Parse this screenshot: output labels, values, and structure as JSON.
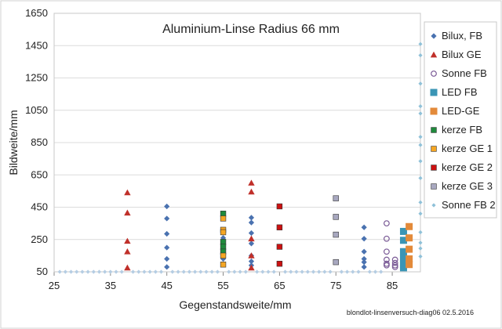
{
  "chart_data": {
    "type": "scatter",
    "title": "Aluminium-Linse Radius 66 mm",
    "xlabel": "Gegenstandsweite/mm",
    "ylabel": "Bildweite/mm",
    "xlim": [
      25,
      90
    ],
    "ylim": [
      50,
      1650
    ],
    "xticks": [
      25,
      35,
      45,
      55,
      65,
      75,
      85
    ],
    "yticks": [
      50,
      250,
      450,
      650,
      850,
      1050,
      1250,
      1450,
      1650
    ],
    "grid": "horizontal",
    "legend_position": "right",
    "footnote": "blondlot-linsenversuch-diag06 02.5.2016",
    "series": [
      {
        "name": "Bilux, FB",
        "marker": "diamond",
        "color": "#4a72b0",
        "points": [
          [
            45,
            455
          ],
          [
            45,
            380
          ],
          [
            45,
            285
          ],
          [
            45,
            200
          ],
          [
            45,
            130
          ],
          [
            45,
            80
          ],
          [
            55,
            260
          ],
          [
            55,
            215
          ],
          [
            55,
            190
          ],
          [
            55,
            130
          ],
          [
            60,
            385
          ],
          [
            60,
            355
          ],
          [
            60,
            290
          ],
          [
            60,
            225
          ],
          [
            60,
            150
          ],
          [
            60,
            115
          ],
          [
            60,
            90
          ],
          [
            80,
            325
          ],
          [
            80,
            255
          ],
          [
            80,
            175
          ],
          [
            80,
            130
          ],
          [
            80,
            110
          ],
          [
            80,
            80
          ]
        ]
      },
      {
        "name": "Bilux GE",
        "marker": "triangle",
        "color": "#c0302a",
        "points": [
          [
            38,
            540
          ],
          [
            38,
            415
          ],
          [
            38,
            240
          ],
          [
            38,
            175
          ],
          [
            38,
            75
          ],
          [
            60,
            600
          ],
          [
            60,
            545
          ],
          [
            60,
            255
          ],
          [
            60,
            150
          ],
          [
            60,
            75
          ]
        ]
      },
      {
        "name": "Sonne FB",
        "marker": "circle-open",
        "color": "#7a5a96",
        "points": [
          [
            84,
            350
          ],
          [
            84,
            255
          ],
          [
            84,
            175
          ],
          [
            84,
            125
          ],
          [
            84,
            100
          ],
          [
            84,
            90
          ],
          [
            85.5,
            125
          ],
          [
            85.5,
            105
          ],
          [
            85.5,
            90
          ],
          [
            85.5,
            80
          ]
        ]
      },
      {
        "name": "LED FB",
        "marker": "square-large",
        "color": "#3a95b5",
        "points": [
          [
            87,
            300
          ],
          [
            87,
            245
          ],
          [
            87,
            175
          ],
          [
            87,
            135
          ],
          [
            87,
            95
          ],
          [
            87,
            75
          ]
        ]
      },
      {
        "name": "LED-GE",
        "marker": "square-large",
        "color": "#e38a3a",
        "points": [
          [
            88,
            330
          ],
          [
            88,
            260
          ],
          [
            88,
            190
          ],
          [
            88,
            130
          ],
          [
            88,
            95
          ]
        ]
      },
      {
        "name": "kerze FB",
        "marker": "square",
        "color": "#1f8a3c",
        "points": [
          [
            55,
            410
          ],
          [
            55,
            235
          ],
          [
            55,
            205
          ],
          [
            55,
            175
          ]
        ]
      },
      {
        "name": "kerze GE 1",
        "marker": "square",
        "color": "#f5a623",
        "points": [
          [
            55,
            380
          ],
          [
            55,
            310
          ],
          [
            55,
            295
          ],
          [
            55,
            150
          ],
          [
            55,
            95
          ]
        ]
      },
      {
        "name": "kerze GE 2",
        "marker": "square",
        "color": "#cc1111",
        "points": [
          [
            65,
            455
          ],
          [
            65,
            325
          ],
          [
            65,
            205
          ],
          [
            65,
            100
          ]
        ]
      },
      {
        "name": "kerze GE 3",
        "marker": "square",
        "color": "#a8a8c0",
        "points": [
          [
            75,
            505
          ],
          [
            75,
            390
          ],
          [
            75,
            280
          ],
          [
            75,
            110
          ]
        ]
      },
      {
        "name": "Sonne FB 2",
        "marker": "diamond-small",
        "color": "#8fc1d8",
        "points": [
          [
            90,
            1460
          ],
          [
            90,
            1390
          ],
          [
            90,
            1215
          ],
          [
            90,
            1075
          ],
          [
            90,
            1030
          ],
          [
            90,
            885
          ],
          [
            90,
            835
          ],
          [
            90,
            735
          ],
          [
            90,
            630
          ],
          [
            90,
            480
          ],
          [
            90,
            410
          ],
          [
            90,
            295
          ],
          [
            90,
            230
          ],
          [
            90,
            195
          ],
          [
            90,
            145
          ]
        ]
      }
    ],
    "baseline": {
      "marker": "diamond-small",
      "color": "#b5cde3",
      "y": 50,
      "x": [
        26,
        27,
        28,
        29,
        30,
        31,
        32,
        33,
        34,
        35,
        36,
        37,
        39,
        40,
        41,
        42,
        43,
        44,
        46,
        47,
        48,
        49,
        50,
        51,
        52,
        53,
        54,
        56,
        57,
        58,
        59,
        61,
        62,
        63,
        64,
        66,
        67,
        68,
        69,
        70,
        71,
        72,
        73,
        74,
        76,
        77,
        78,
        79,
        81,
        82,
        83
      ]
    }
  }
}
